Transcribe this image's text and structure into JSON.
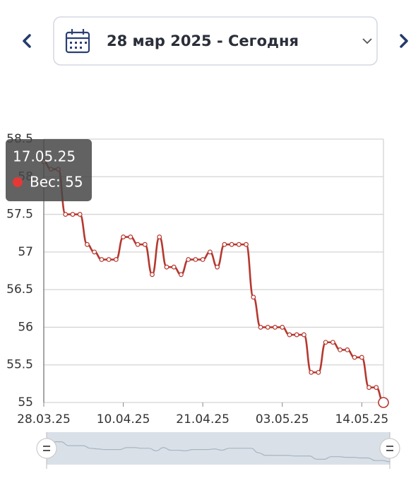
{
  "header": {
    "date_range": "28 мар 2025 - Сегодня"
  },
  "chart_data": {
    "type": "line",
    "categories": [
      "28.03.25",
      null,
      null,
      null,
      null,
      null,
      null,
      null,
      null,
      null,
      null,
      "10.04.25",
      null,
      null,
      null,
      null,
      null,
      null,
      null,
      null,
      null,
      null,
      "21.04.25",
      null,
      null,
      null,
      null,
      null,
      null,
      null,
      null,
      null,
      null,
      "03.05.25",
      null,
      null,
      null,
      null,
      null,
      null,
      null,
      null,
      null,
      null,
      "14.05.25",
      null,
      null,
      null
    ],
    "values": [
      58.2,
      58.1,
      58.1,
      57.5,
      57.5,
      57.5,
      57.1,
      57.0,
      56.9,
      56.9,
      56.9,
      57.2,
      57.2,
      57.1,
      57.1,
      56.7,
      57.2,
      56.8,
      56.8,
      56.7,
      56.9,
      56.9,
      56.9,
      57.0,
      56.8,
      57.1,
      57.1,
      57.1,
      57.1,
      56.4,
      56.0,
      56.0,
      56.0,
      56.0,
      55.9,
      55.9,
      55.9,
      55.4,
      55.4,
      55.8,
      55.8,
      55.7,
      55.7,
      55.6,
      55.6,
      55.2,
      55.2,
      55
    ],
    "color": "#b5382f",
    "ylim": [
      55,
      58.5
    ],
    "yticks": [
      55,
      55.5,
      56,
      56.5,
      57,
      57.5,
      58,
      58.5
    ],
    "grid": true,
    "tooltip": {
      "title": "17.05.25",
      "label": "Вес: 55"
    }
  }
}
